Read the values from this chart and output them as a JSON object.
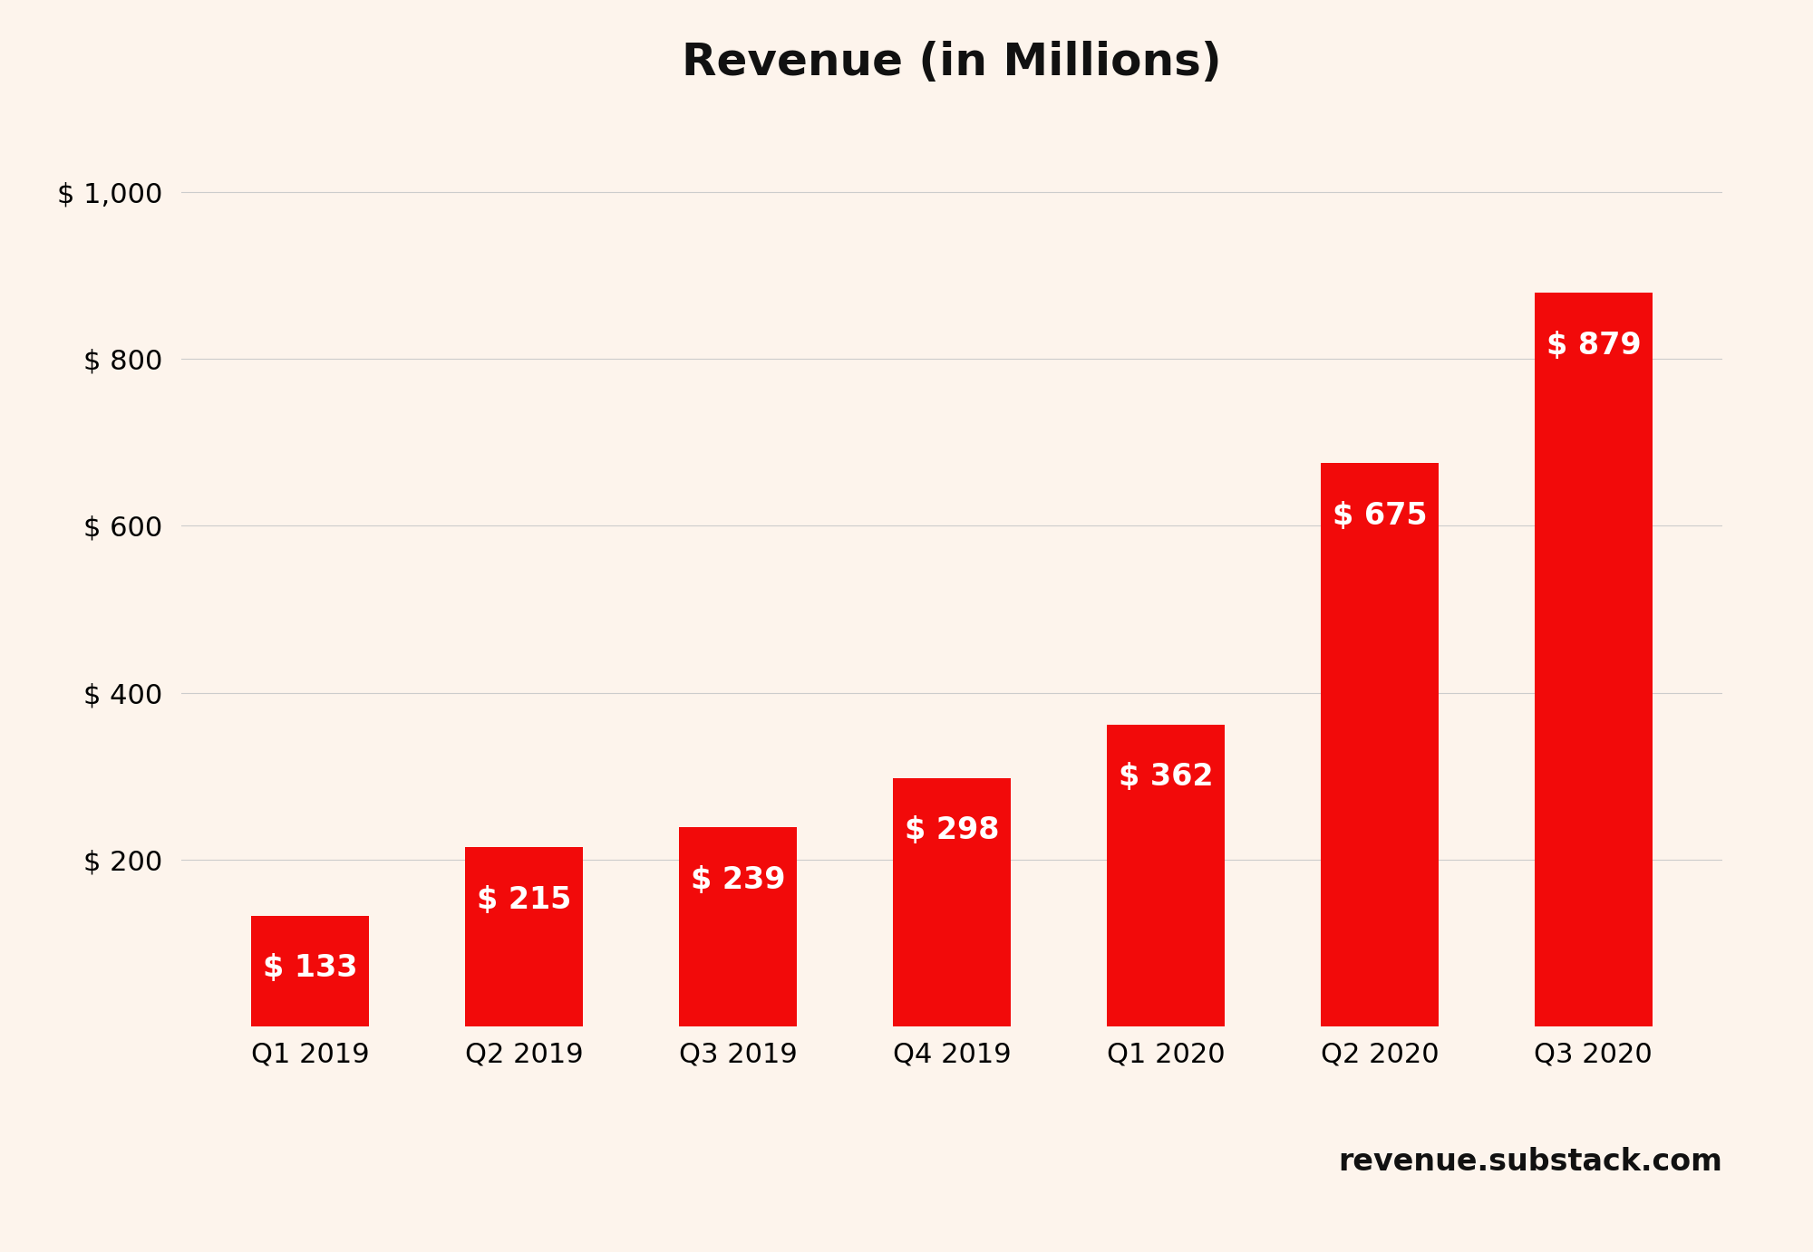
{
  "title": "Revenue (in Millions)",
  "categories": [
    "Q1 2019",
    "Q2 2019",
    "Q3 2019",
    "Q4 2019",
    "Q1 2020",
    "Q2 2020",
    "Q3 2020"
  ],
  "values": [
    133,
    215,
    239,
    298,
    362,
    675,
    879
  ],
  "bar_color": "#f20a0a",
  "label_color": "#ffffff",
  "background_color": "#fdf4ec",
  "title_fontsize": 36,
  "label_fontsize": 24,
  "tick_fontsize": 22,
  "ytick_labels": [
    "$ 200",
    "$ 400",
    "$ 600",
    "$ 800",
    "$ 1,000"
  ],
  "ytick_values": [
    200,
    400,
    600,
    800,
    1000
  ],
  "ylim": [
    0,
    1080
  ],
  "watermark": "revenue.substack.com",
  "watermark_fontsize": 24,
  "grid_color": "#cccccc",
  "bar_width": 0.55
}
